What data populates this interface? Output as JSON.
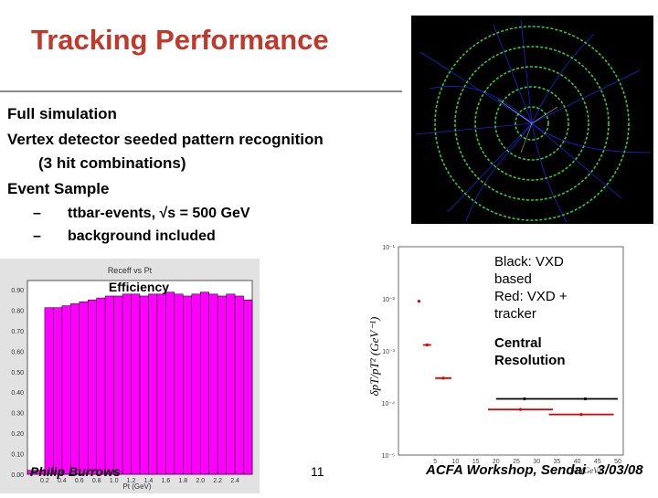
{
  "slide": {
    "title": "Tracking Performance",
    "bullets": [
      "Full simulation",
      "Vertex detector seeded pattern recognition",
      "(3 hit combinations)",
      "Event Sample"
    ],
    "sub_bullets": [
      {
        "dash": "–",
        "text": "ttbar-events, √s = 500 GeV"
      },
      {
        "dash": "–",
        "text": "background included"
      }
    ],
    "footer": {
      "author": "Philip Burrows",
      "page": "11",
      "conference": "ACFA Workshop, Sendai",
      "date": "3/03/08"
    }
  },
  "histogram": {
    "hist_title": "Receff vs Pt",
    "label": "Efficiency",
    "y_ticks": [
      "0.90",
      "0.80",
      "0.70",
      "0.60",
      "0.50",
      "0.40",
      "0.30",
      "0.20",
      "0.10",
      "0.00"
    ],
    "x_ticks": [
      "0.2",
      "0.4",
      "0.6",
      "0.8",
      "1.0",
      "1.2",
      "1.4",
      "1.6",
      "1.8",
      "2.0",
      "2.2",
      "2.4"
    ],
    "x_axis": "Pt (GeV)",
    "bar_color": "#ff00ff"
  },
  "resolution": {
    "y_label": "δpT/pT² (GeV⁻¹)",
    "annotation": [
      "Black: VXD",
      "based",
      "Red: VXD +",
      "tracker"
    ],
    "caption": [
      "Central",
      "Resolution"
    ],
    "x_axis": "pT (GeV)",
    "y_ticks": [
      "10⁻¹",
      "10⁻²",
      "10⁻³",
      "10⁻⁴",
      "10⁻⁵"
    ],
    "x_ticks": [
      "5",
      "10",
      "15",
      "20",
      "25",
      "30",
      "35",
      "40",
      "45",
      "50"
    ]
  },
  "chart_data": [
    {
      "type": "bar",
      "title": "Receff vs Pt",
      "xlabel": "Pt (GeV)",
      "ylabel": "Efficiency",
      "ylim": [
        0,
        1.0
      ],
      "x": [
        0.0,
        0.1,
        0.2,
        0.3,
        0.4,
        0.5,
        0.6,
        0.7,
        0.8,
        0.9,
        1.0,
        1.1,
        1.2,
        1.3,
        1.4,
        1.5,
        1.6,
        1.7,
        1.8,
        1.9,
        2.0,
        2.1,
        2.2,
        2.3,
        2.4,
        2.5
      ],
      "values": [
        0.02,
        0.02,
        0.86,
        0.86,
        0.87,
        0.88,
        0.89,
        0.9,
        0.91,
        0.92,
        0.92,
        0.93,
        0.93,
        0.92,
        0.93,
        0.93,
        0.94,
        0.93,
        0.92,
        0.93,
        0.94,
        0.93,
        0.92,
        0.93,
        0.92,
        0.9
      ]
    },
    {
      "type": "scatter",
      "xlabel": "pT (GeV)",
      "ylabel": "δpT/pT² (GeV⁻¹)",
      "log_y": true,
      "ylim": [
        1e-05,
        0.1
      ],
      "xlim": [
        0,
        50
      ],
      "series": [
        {
          "name": "Black: VXD based",
          "color": "#000000",
          "points": [
            {
              "x": 27,
              "xerr": 7,
              "y": 0.00012
            },
            {
              "x": 42,
              "xerr": 8,
              "y": 0.00012
            }
          ]
        },
        {
          "name": "Red: VXD + tracker",
          "color": "#dd0000",
          "points": [
            {
              "x": 1,
              "xerr": 0.3,
              "y": 0.009
            },
            {
              "x": 3,
              "xerr": 1,
              "y": 0.0013
            },
            {
              "x": 7,
              "xerr": 2,
              "y": 0.0003
            },
            {
              "x": 26,
              "xerr": 8,
              "y": 7.5e-05
            },
            {
              "x": 41,
              "xerr": 8,
              "y": 6e-05
            }
          ]
        }
      ]
    }
  ]
}
